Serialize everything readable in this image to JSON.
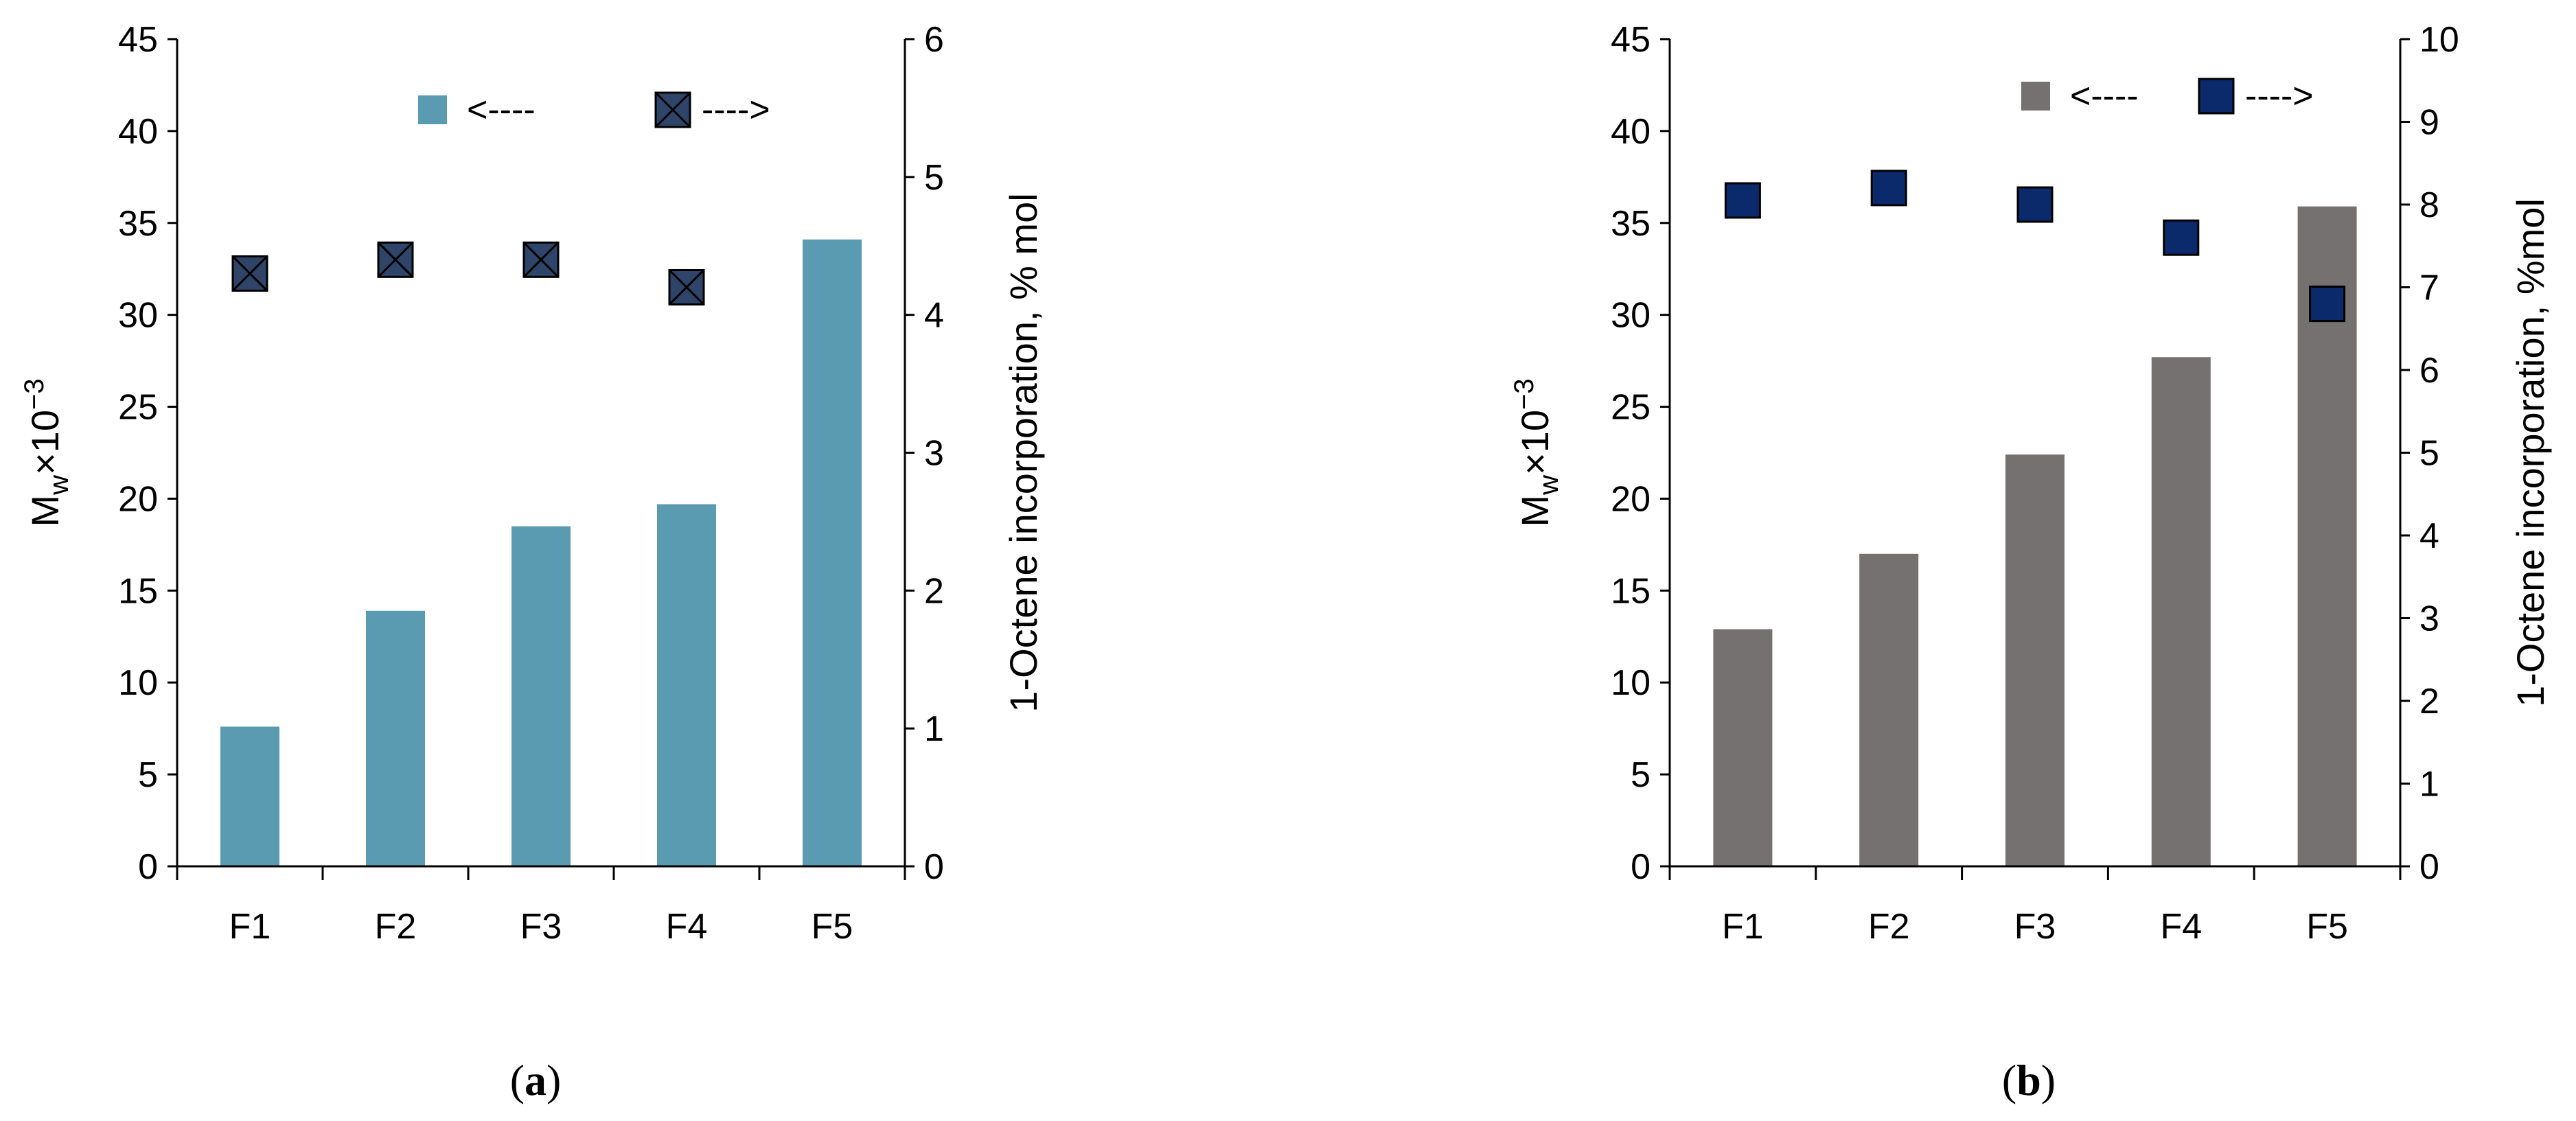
{
  "chart_data": [
    {
      "type": "bar",
      "panel_label": "a",
      "categories": [
        "F1",
        "F2",
        "F3",
        "F4",
        "F5"
      ],
      "series": [
        {
          "name": "Mw×10⁻³",
          "kind": "bar",
          "axis": "left",
          "color": "#5b9bb2",
          "values": [
            7.6,
            13.9,
            18.5,
            19.7,
            34.1
          ],
          "legend_arrow": "<----"
        },
        {
          "name": "1-Octene incorporation, % mol",
          "kind": "marker",
          "marker": "square-x",
          "axis": "right",
          "color": "#2e4569",
          "values": [
            4.3,
            4.4,
            4.4,
            4.2,
            null
          ],
          "legend_arrow": "---->"
        }
      ],
      "y_left": {
        "label_main": "M",
        "label_sub": "w",
        "label_rest": "×10",
        "label_sup": "−3",
        "range": [
          0,
          45
        ],
        "ticks": [
          "0",
          "5",
          "10",
          "15",
          "20",
          "25",
          "30",
          "35",
          "40",
          "45"
        ]
      },
      "y_right": {
        "label": "1-Octene incorporation, % mol",
        "range": [
          0,
          6
        ],
        "ticks": [
          "0",
          "1",
          "2",
          "3",
          "4",
          "5",
          "6"
        ]
      },
      "legend_position": "top-right",
      "grid": false
    },
    {
      "type": "bar",
      "panel_label": "b",
      "categories": [
        "F1",
        "F2",
        "F3",
        "F4",
        "F5"
      ],
      "series": [
        {
          "name": "Mw×10⁻³",
          "kind": "bar",
          "axis": "left",
          "color": "#767171",
          "values": [
            12.9,
            17.0,
            22.4,
            27.7,
            35.9
          ],
          "legend_arrow": "<----"
        },
        {
          "name": "1-Octene incorporation, %mol",
          "kind": "marker",
          "marker": "square",
          "axis": "right",
          "color": "#0a2a6b",
          "values": [
            8.05,
            8.2,
            8.0,
            7.6,
            6.8
          ],
          "legend_arrow": "---->"
        }
      ],
      "y_left": {
        "label_main": "M",
        "label_sub": "w",
        "label_rest": "×10",
        "label_sup": "−3",
        "range": [
          0,
          45
        ],
        "ticks": [
          "0",
          "5",
          "10",
          "15",
          "20",
          "25",
          "30",
          "35",
          "40",
          "45"
        ]
      },
      "y_right": {
        "label": "1-Octene incorporation,  %mol",
        "range": [
          0,
          10
        ],
        "ticks": [
          "0",
          "1",
          "2",
          "3",
          "4",
          "5",
          "6",
          "7",
          "8",
          "9",
          "10"
        ]
      },
      "legend_position": "top-right",
      "grid": false
    }
  ]
}
